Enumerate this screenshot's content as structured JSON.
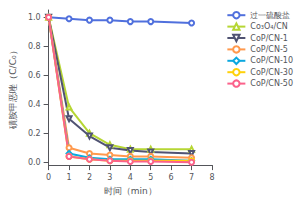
{
  "chart_data": {
    "type": "line",
    "xlabel": "时间（min）",
    "ylabel": "磺胺甲恶唑（C/C₀）",
    "xlim": [
      0,
      8
    ],
    "ylim": [
      -0.02,
      1.05
    ],
    "xticks": [
      0,
      1,
      2,
      3,
      4,
      5,
      6,
      7,
      8
    ],
    "yticks": [
      {
        "value": 0.0,
        "label": "0.0"
      },
      0.2,
      0.4,
      0.6,
      0.8,
      {
        "value": 1.0,
        "label": "1.0"
      }
    ],
    "grid": false,
    "legend": "upper right",
    "line_style": "solid",
    "series": [
      {
        "name": "过一硫酸盐",
        "marker": "circle",
        "x": [
          0,
          1,
          2,
          3,
          4,
          5,
          7
        ],
        "values": [
          1.0,
          0.99,
          0.98,
          0.98,
          0.97,
          0.97,
          0.96
        ]
      },
      {
        "name": "Co₃O₄/CN",
        "marker": "triangle-up",
        "x": [
          0,
          1,
          2,
          3,
          4,
          5,
          7
        ],
        "values": [
          1.0,
          0.38,
          0.2,
          0.12,
          0.09,
          0.09,
          0.09
        ]
      },
      {
        "name": "CoP/CN-1",
        "marker": "triangle-down",
        "x": [
          0,
          1,
          2,
          3,
          4,
          5,
          7
        ],
        "values": [
          1.0,
          0.3,
          0.18,
          0.1,
          0.08,
          0.07,
          0.06
        ]
      },
      {
        "name": "CoP/CN-5",
        "marker": "circle",
        "x": [
          0,
          1,
          2,
          3,
          4,
          5,
          7
        ],
        "values": [
          1.0,
          0.1,
          0.06,
          0.05,
          0.04,
          0.04,
          0.03
        ]
      },
      {
        "name": "CoP/CN-10",
        "marker": "diamond",
        "x": [
          0,
          1,
          2,
          3,
          4,
          5,
          7
        ],
        "values": [
          1.0,
          0.06,
          0.03,
          0.02,
          0.02,
          0.02,
          0.01
        ]
      },
      {
        "name": "CoP/CN-30",
        "marker": "circle",
        "x": [
          0,
          1,
          2,
          3,
          4,
          5,
          7
        ],
        "values": [
          1.0,
          0.04,
          0.02,
          0.01,
          0.01,
          0.01,
          0.01
        ]
      },
      {
        "name": "CoP/CN-50",
        "marker": "circle",
        "x": [
          0,
          1,
          2,
          3,
          4,
          5,
          7
        ],
        "values": [
          1.0,
          0.04,
          0.02,
          0.01,
          0.005,
          0.005,
          0.0
        ]
      }
    ]
  }
}
